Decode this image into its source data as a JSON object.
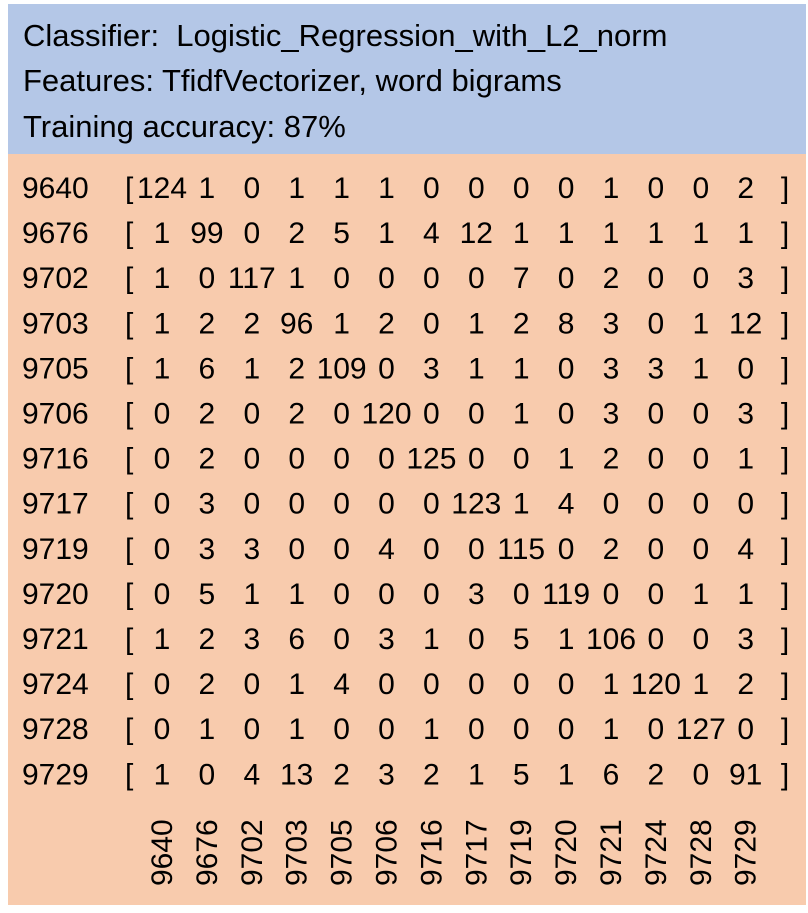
{
  "header": {
    "classifier_line": "Classifier:  Logistic_Regression_with_L2_norm",
    "features_line": "Features: TfidfVectorizer, word bigrams",
    "accuracy_line": "Training accuracy: 87%"
  },
  "colors": {
    "header_bg": "#b4c7e7",
    "matrix_bg": "#f8cbad"
  },
  "chart_data": {
    "type": "table",
    "row_labels": [
      "9640",
      "9676",
      "9702",
      "9703",
      "9705",
      "9706",
      "9716",
      "9717",
      "9719",
      "9720",
      "9721",
      "9724",
      "9728",
      "9729"
    ],
    "column_labels": [
      "9640",
      "9676",
      "9702",
      "9703",
      "9705",
      "9706",
      "9716",
      "9717",
      "9719",
      "9720",
      "9721",
      "9724",
      "9728",
      "9729"
    ],
    "open_bracket": "[",
    "close_bracket": "]",
    "matrix": [
      [
        124,
        1,
        0,
        1,
        1,
        1,
        0,
        0,
        0,
        0,
        1,
        0,
        0,
        2
      ],
      [
        1,
        99,
        0,
        2,
        5,
        1,
        4,
        12,
        1,
        1,
        1,
        1,
        1,
        1
      ],
      [
        1,
        0,
        117,
        1,
        0,
        0,
        0,
        0,
        7,
        0,
        2,
        0,
        0,
        3
      ],
      [
        1,
        2,
        2,
        96,
        1,
        2,
        0,
        1,
        2,
        8,
        3,
        0,
        1,
        12
      ],
      [
        1,
        6,
        1,
        2,
        109,
        0,
        3,
        1,
        1,
        0,
        3,
        3,
        1,
        0
      ],
      [
        0,
        2,
        0,
        2,
        0,
        120,
        0,
        0,
        1,
        0,
        3,
        0,
        0,
        3
      ],
      [
        0,
        2,
        0,
        0,
        0,
        0,
        125,
        0,
        0,
        1,
        2,
        0,
        0,
        1
      ],
      [
        0,
        3,
        0,
        0,
        0,
        0,
        0,
        123,
        1,
        4,
        0,
        0,
        0,
        0
      ],
      [
        0,
        3,
        3,
        0,
        0,
        4,
        0,
        0,
        115,
        0,
        2,
        0,
        0,
        4
      ],
      [
        0,
        5,
        1,
        1,
        0,
        0,
        0,
        3,
        0,
        119,
        0,
        0,
        1,
        1
      ],
      [
        1,
        2,
        3,
        6,
        0,
        3,
        1,
        0,
        5,
        1,
        106,
        0,
        0,
        3
      ],
      [
        0,
        2,
        0,
        1,
        4,
        0,
        0,
        0,
        0,
        0,
        1,
        120,
        1,
        2
      ],
      [
        0,
        1,
        0,
        1,
        0,
        0,
        1,
        0,
        0,
        0,
        1,
        0,
        127,
        0
      ],
      [
        1,
        0,
        4,
        13,
        2,
        3,
        2,
        1,
        5,
        1,
        6,
        2,
        0,
        91
      ]
    ]
  }
}
